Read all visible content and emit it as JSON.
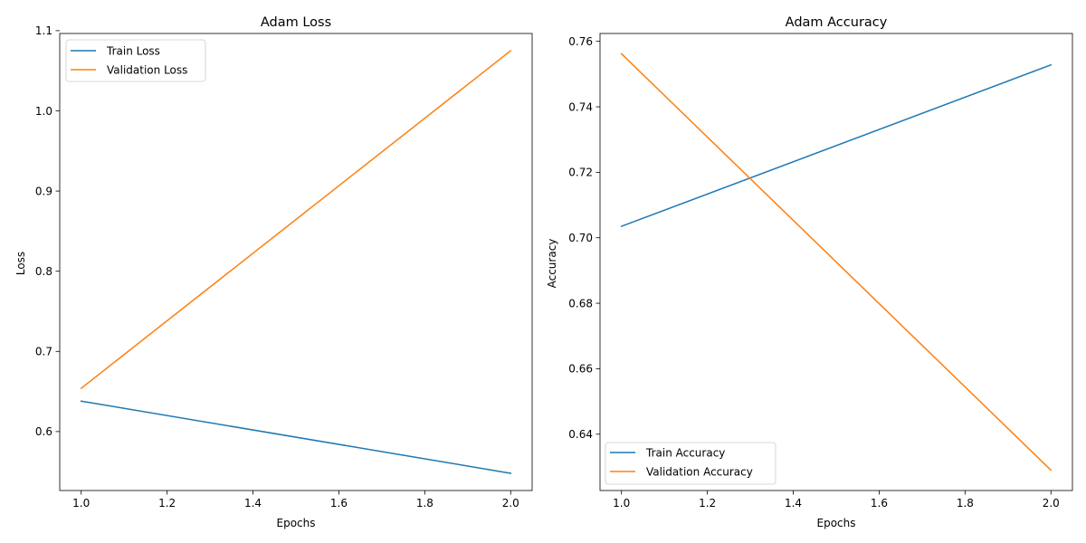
{
  "chart_data": [
    {
      "type": "line",
      "title": "Adam Loss",
      "xlabel": "Epochs",
      "ylabel": "Loss",
      "x": [
        1.0,
        2.0
      ],
      "xlim": [
        0.95,
        2.05
      ],
      "ylim": [
        0.5265,
        1.0965
      ],
      "xticks": [
        1.0,
        1.2,
        1.4,
        1.6,
        1.8,
        2.0
      ],
      "xtick_labels": [
        "1.0",
        "1.2",
        "1.4",
        "1.6",
        "1.8",
        "2.0"
      ],
      "yticks": [
        0.6,
        0.7,
        0.8,
        0.9,
        1.0,
        1.1
      ],
      "ytick_labels": [
        "0.6",
        "0.7",
        "0.8",
        "0.9",
        "1.0",
        "1.1"
      ],
      "grid": false,
      "legend": "upper-left",
      "series": [
        {
          "name": "Train Loss",
          "values": [
            0.638,
            0.548
          ],
          "color": "#1f77b4"
        },
        {
          "name": "Validation Loss",
          "values": [
            0.654,
            1.075
          ],
          "color": "#ff7f0e"
        }
      ]
    },
    {
      "type": "line",
      "title": "Adam Accuracy",
      "xlabel": "Epochs",
      "ylabel": "Accuracy",
      "x": [
        1.0,
        2.0
      ],
      "xlim": [
        0.95,
        2.05
      ],
      "ylim": [
        0.6228,
        0.7624
      ],
      "xticks": [
        1.0,
        1.2,
        1.4,
        1.6,
        1.8,
        2.0
      ],
      "xtick_labels": [
        "1.0",
        "1.2",
        "1.4",
        "1.6",
        "1.8",
        "2.0"
      ],
      "yticks": [
        0.64,
        0.66,
        0.68,
        0.7,
        0.72,
        0.74,
        0.76
      ],
      "ytick_labels": [
        "0.64",
        "0.66",
        "0.68",
        "0.70",
        "0.72",
        "0.74",
        "0.76"
      ],
      "grid": false,
      "legend": "lower-left",
      "series": [
        {
          "name": "Train Accuracy",
          "values": [
            0.7035,
            0.7528
          ],
          "color": "#1f77b4"
        },
        {
          "name": "Validation Accuracy",
          "values": [
            0.7562,
            0.629
          ],
          "color": "#ff7f0e"
        }
      ]
    }
  ]
}
